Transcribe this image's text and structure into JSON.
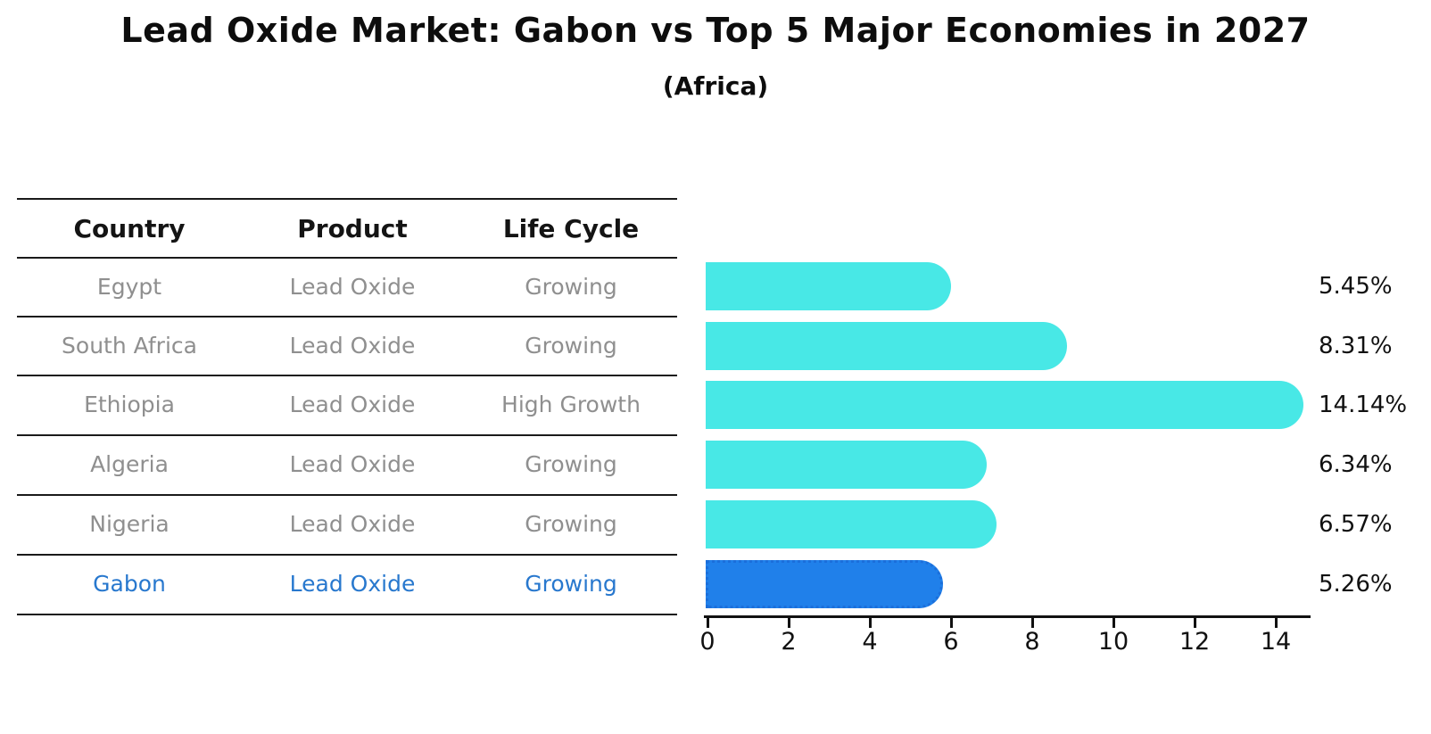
{
  "title": "Lead Oxide Market: Gabon vs Top 5 Major Economies in 2027",
  "subtitle": "(Africa)",
  "table": {
    "headers": [
      "Country",
      "Product",
      "Life Cycle"
    ],
    "rows": [
      {
        "country": "Egypt",
        "product": "Lead Oxide",
        "life_cycle": "Growing",
        "highlighted": false
      },
      {
        "country": "South Africa",
        "product": "Lead Oxide",
        "life_cycle": "Growing",
        "highlighted": false
      },
      {
        "country": "Ethiopia",
        "product": "Lead Oxide",
        "life_cycle": "High Growth",
        "highlighted": false
      },
      {
        "country": "Algeria",
        "product": "Lead Oxide",
        "life_cycle": "Growing",
        "highlighted": false
      },
      {
        "country": "Nigeria",
        "product": "Lead Oxide",
        "life_cycle": "Growing",
        "highlighted": false
      },
      {
        "country": "Gabon",
        "product": "Lead Oxide",
        "life_cycle": "Growing",
        "highlighted": true
      }
    ]
  },
  "chart_data": {
    "type": "bar",
    "orientation": "horizontal",
    "title": "Lead Oxide Market: Gabon vs Top 5 Major Economies in 2027",
    "subtitle": "(Africa)",
    "categories": [
      "Egypt",
      "South Africa",
      "Ethiopia",
      "Algeria",
      "Nigeria",
      "Gabon"
    ],
    "values": [
      5.45,
      8.31,
      14.14,
      6.34,
      6.57,
      5.26
    ],
    "value_labels": [
      "5.45%",
      "8.31%",
      "14.14%",
      "6.34%",
      "6.57%",
      "5.26%"
    ],
    "xticks": [
      0,
      2,
      4,
      6,
      8,
      10,
      12,
      14
    ],
    "xlim": [
      0,
      15
    ],
    "grid": false,
    "legend": false,
    "highlight_category": "Gabon",
    "colors": {
      "bar": "#48e8e6",
      "highlight_bar": "#2080ea",
      "highlight_bar_border": "#1b6fdb",
      "highlight_text": "#2878ce",
      "text": "#8f8f8f",
      "axis": "#111111"
    }
  }
}
